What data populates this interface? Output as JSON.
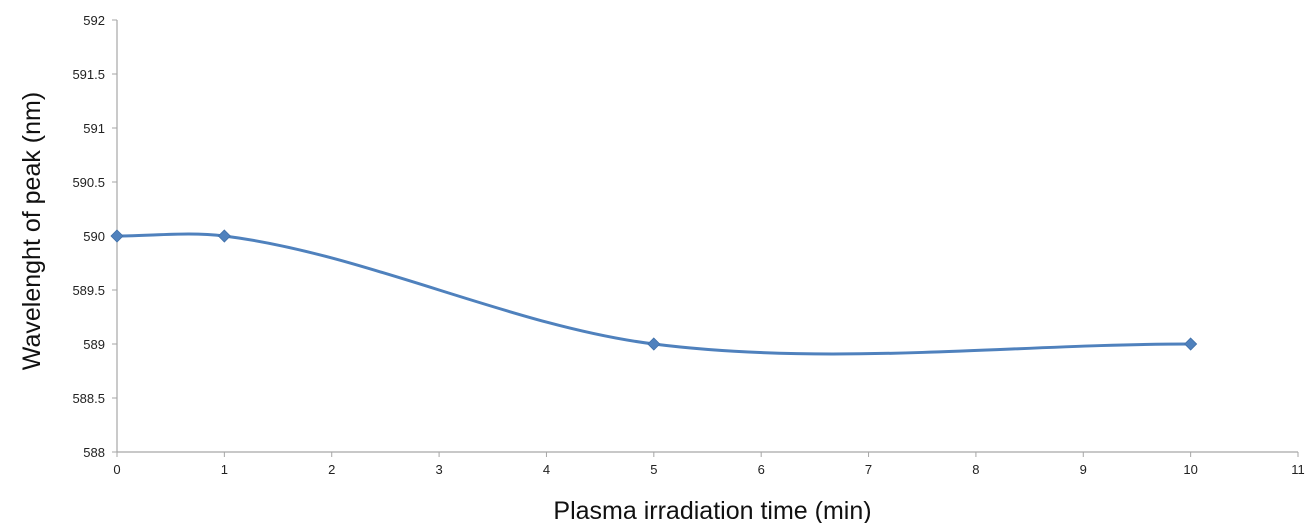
{
  "chart_data": {
    "type": "line",
    "title": "",
    "xlabel": "Plasma irradiation time (min)",
    "ylabel": "Wavelenght of peak (nm)",
    "xlim": [
      0,
      11
    ],
    "ylim": [
      588,
      592
    ],
    "x_ticks": [
      0,
      1,
      2,
      3,
      4,
      5,
      6,
      7,
      8,
      9,
      10,
      11
    ],
    "y_ticks": [
      588,
      588.5,
      589,
      589.5,
      590,
      590.5,
      591,
      591.5,
      592
    ],
    "grid": false,
    "legend": "none",
    "smoothed_line": true,
    "marker": "diamond",
    "series": [
      {
        "x": [
          0,
          1,
          5,
          10
        ],
        "values": [
          590,
          590,
          589,
          589
        ],
        "color": "#4F81BD"
      }
    ]
  }
}
